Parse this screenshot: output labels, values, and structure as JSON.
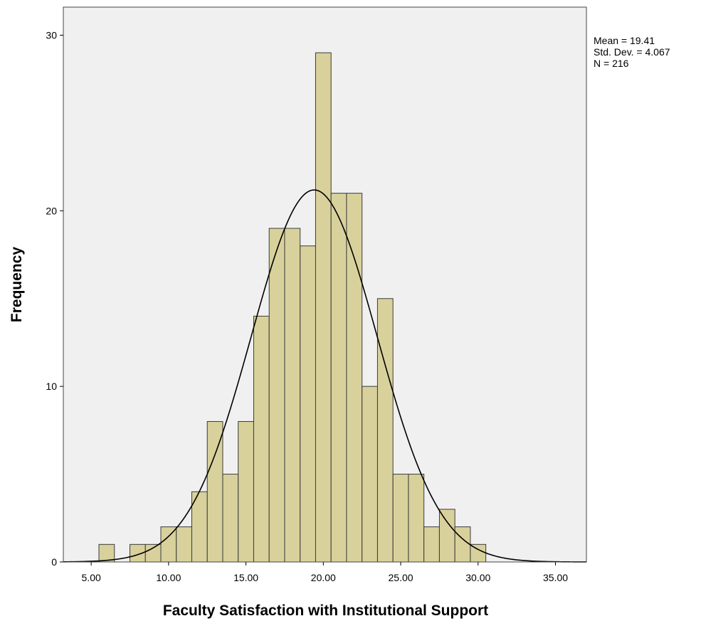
{
  "chart_data": {
    "type": "bar",
    "subtype": "histogram",
    "xlabel": "Faculty Satisfaction with Institutional Support",
    "ylabel": "Frequency",
    "xlim": [
      3.2,
      37.0
    ],
    "ylim": [
      0,
      31.6
    ],
    "x_ticks": [
      5,
      10,
      15,
      20,
      25,
      30,
      35
    ],
    "x_tick_labels": [
      "5.00",
      "10.00",
      "15.00",
      "20.00",
      "25.00",
      "30.00",
      "35.00"
    ],
    "y_ticks": [
      0,
      10,
      20,
      30
    ],
    "y_tick_labels": [
      "0",
      "10",
      "20",
      "30"
    ],
    "bin_width": 1.0,
    "bin_starts": [
      5.5,
      7.5,
      8.5,
      9.5,
      10.5,
      11.5,
      12.5,
      13.5,
      14.5,
      15.5,
      16.5,
      17.5,
      18.5,
      19.5,
      20.5,
      21.5,
      22.5,
      23.5,
      24.5,
      25.5,
      26.5,
      27.5,
      28.5,
      29.5
    ],
    "values": [
      1,
      1,
      1,
      2,
      2,
      4,
      8,
      5,
      8,
      14,
      19,
      19,
      18,
      29,
      21,
      21,
      10,
      15,
      5,
      5,
      2,
      3,
      2,
      1
    ],
    "normal_curve": {
      "mean": 19.41,
      "std_dev": 4.067,
      "n": 216
    },
    "grid": false,
    "legend": "none",
    "colors": {
      "bar_fill": "#d9d19c",
      "bar_stroke": "#3a3a3a",
      "plot_bg": "#f0f0f0",
      "curve": "#000000"
    }
  },
  "stats_box": {
    "lines": [
      "Mean = 19.41",
      "Std. Dev. = 4.067",
      "N = 216"
    ]
  }
}
